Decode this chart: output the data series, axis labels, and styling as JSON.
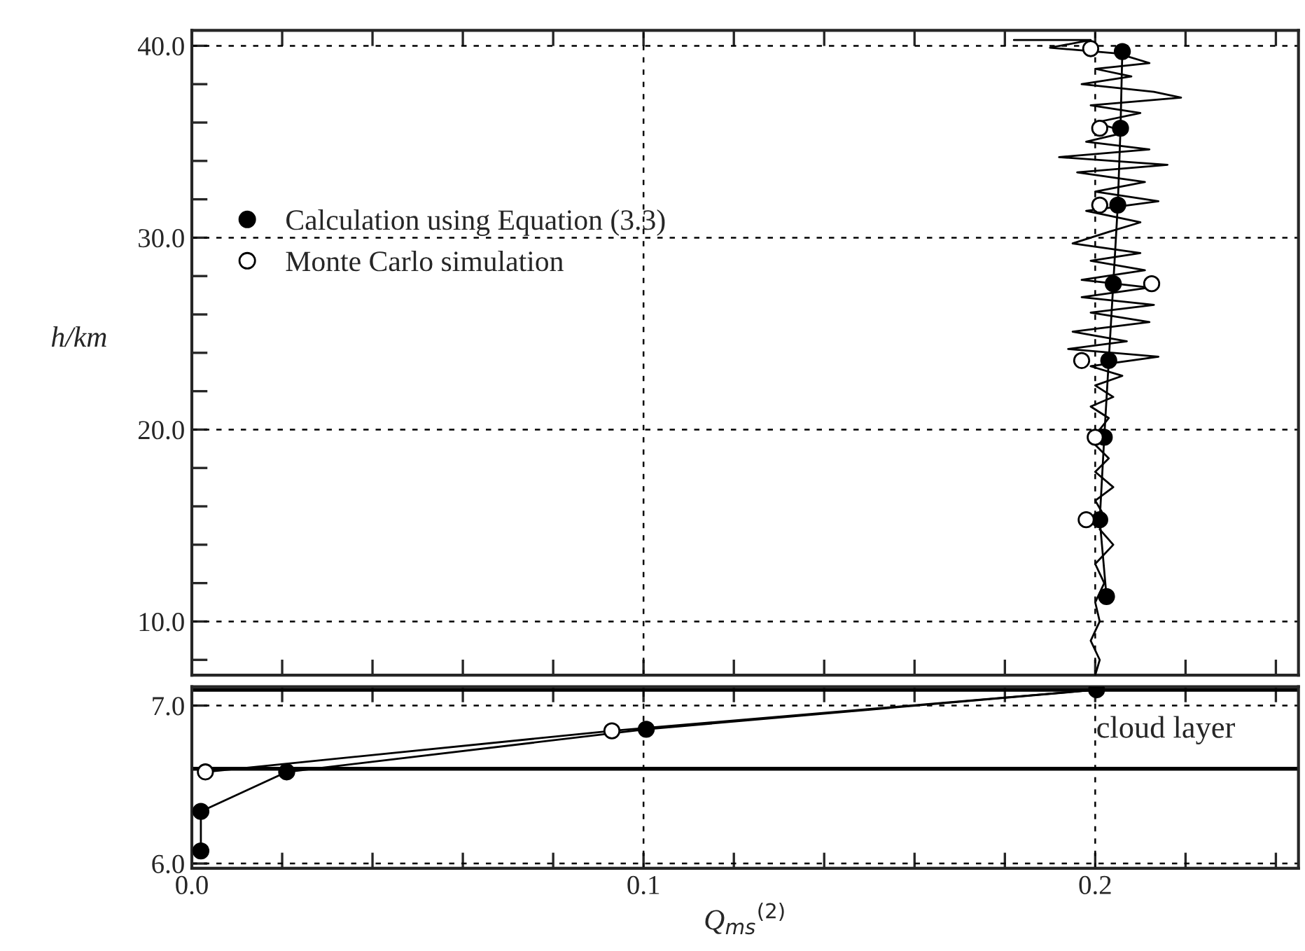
{
  "chart_data": [
    {
      "type": "line",
      "ylabel": "h/km",
      "xlim": [
        0,
        0.245
      ],
      "ylim": [
        7.2,
        40.8
      ],
      "tick_labels": "y",
      "grid": true,
      "legend": "center left",
      "xticks": [
        0,
        0.02,
        0.04,
        0.06,
        0.08,
        0.1,
        0.12,
        0.14,
        0.16,
        0.18,
        0.2,
        0.22,
        0.24
      ],
      "yticks": [
        {
          "value": 8,
          "label": null
        },
        {
          "value": 10,
          "label": "10.0"
        },
        {
          "value": 12,
          "label": null
        },
        {
          "value": 14,
          "label": null
        },
        {
          "value": 16,
          "label": null
        },
        {
          "value": 18,
          "label": null
        },
        {
          "value": 20,
          "label": "20.0"
        },
        {
          "value": 22,
          "label": null
        },
        {
          "value": 24,
          "label": null
        },
        {
          "value": 26,
          "label": null
        },
        {
          "value": 28,
          "label": null
        },
        {
          "value": 30,
          "label": "30.0"
        },
        {
          "value": 32,
          "label": null
        },
        {
          "value": 34,
          "label": null
        },
        {
          "value": 36,
          "label": null
        },
        {
          "value": 38,
          "label": null
        },
        {
          "value": 40,
          "label": "40.0"
        }
      ],
      "series": [
        {
          "color": "#000000",
          "line_style": "solid",
          "marker": "none",
          "x": [
            0.182,
            0.199,
            0.19,
            0.205,
            0.212,
            0.2,
            0.208,
            0.197,
            0.213,
            0.219,
            0.199,
            0.21,
            0.2,
            0.207,
            0.198,
            0.212,
            0.192,
            0.216,
            0.196,
            0.211,
            0.2,
            0.214,
            0.198,
            0.21,
            0.203,
            0.195,
            0.21,
            0.199,
            0.211,
            0.197,
            0.212,
            0.197,
            0.213,
            0.199,
            0.212,
            0.195,
            0.207,
            0.194,
            0.214,
            0.199,
            0.206,
            0.2,
            0.204,
            0.199,
            0.203,
            0.201,
            0.2,
            0.203,
            0.2,
            0.204,
            0.2,
            0.202,
            0.201,
            0.204,
            0.2,
            0.202,
            0.2,
            0.201,
            0.199,
            0.201,
            0.2
          ],
          "values": [
            40.3,
            40.3,
            39.9,
            39.6,
            39.1,
            38.8,
            38.4,
            38.0,
            37.6,
            37.3,
            36.9,
            36.5,
            36.0,
            35.5,
            35.0,
            34.6,
            34.2,
            33.8,
            33.4,
            32.9,
            32.4,
            31.9,
            31.4,
            30.8,
            30.3,
            29.7,
            29.2,
            28.8,
            28.3,
            27.8,
            27.4,
            26.9,
            26.5,
            26.1,
            25.6,
            25.1,
            24.6,
            24.2,
            23.8,
            23.3,
            22.8,
            22.3,
            21.7,
            21.2,
            20.6,
            20.0,
            19.2,
            18.5,
            17.8,
            17.0,
            16.3,
            15.5,
            14.8,
            14.0,
            13.0,
            12.0,
            11.0,
            10.0,
            9.0,
            8.0,
            7.2
          ]
        },
        {
          "name": "Calculation using Equation (3.3)",
          "color": "#000000",
          "line_style": "solid",
          "marker": "circle",
          "x": [
            0.206,
            0.2056,
            0.205,
            0.204,
            0.203,
            0.202,
            0.201,
            0.2025
          ],
          "values": [
            39.7,
            35.7,
            31.7,
            27.6,
            23.6,
            19.6,
            15.3,
            11.3
          ]
        },
        {
          "type": "scatter",
          "name": "Monte Carlo simulation",
          "color": "#000000",
          "marker": "circle",
          "x": [
            0.199,
            0.201,
            0.201,
            0.2125,
            0.197,
            0.2,
            0.198
          ],
          "values": [
            39.85,
            35.7,
            31.7,
            27.6,
            23.6,
            19.6,
            15.3
          ]
        }
      ]
    },
    {
      "type": "line",
      "xlabel": "Q$_{ms}$$^{(2)}$",
      "xlim": [
        0,
        0.245
      ],
      "ylim": [
        5.97,
        7.12
      ],
      "grid": true,
      "xticks": [
        {
          "value": 0,
          "label": "0.0"
        },
        {
          "value": 0.02,
          "label": null
        },
        {
          "value": 0.04,
          "label": null
        },
        {
          "value": 0.06,
          "label": null
        },
        {
          "value": 0.08,
          "label": null
        },
        {
          "value": 0.1,
          "label": "0.1"
        },
        {
          "value": 0.12,
          "label": null
        },
        {
          "value": 0.14,
          "label": null
        },
        {
          "value": 0.16,
          "label": null
        },
        {
          "value": 0.18,
          "label": null
        },
        {
          "value": 0.2,
          "label": "0.2"
        },
        {
          "value": 0.22,
          "label": null
        },
        {
          "value": 0.24,
          "label": null
        }
      ],
      "yticks": [
        {
          "value": 6,
          "label": "6.0"
        },
        {
          "value": 7,
          "label": "7.0"
        }
      ],
      "ref_lines": [
        {
          "axis": "y",
          "value": 6.6,
          "color": "#000000"
        },
        {
          "axis": "y",
          "value": 7.1,
          "color": "#000000"
        }
      ],
      "annotations": [
        "cloud layer"
      ],
      "series": [
        {
          "color": "#000000",
          "line_style": "solid",
          "marker": "circle",
          "x": [
            0.002,
            0.002,
            0.021,
            0.1006,
            0.2003
          ],
          "values": [
            6.08,
            6.33,
            6.58,
            6.85,
            7.1
          ]
        },
        {
          "color": "#000000",
          "line_style": "solid",
          "marker": "none",
          "x": [
            0.003,
            0.093,
            0.2003
          ],
          "values": [
            6.58,
            6.84,
            7.1
          ]
        },
        {
          "type": "scatter",
          "color": "#000000",
          "marker": "circle",
          "x": [
            0.003,
            0.093
          ],
          "values": [
            6.58,
            6.84
          ]
        }
      ]
    }
  ]
}
